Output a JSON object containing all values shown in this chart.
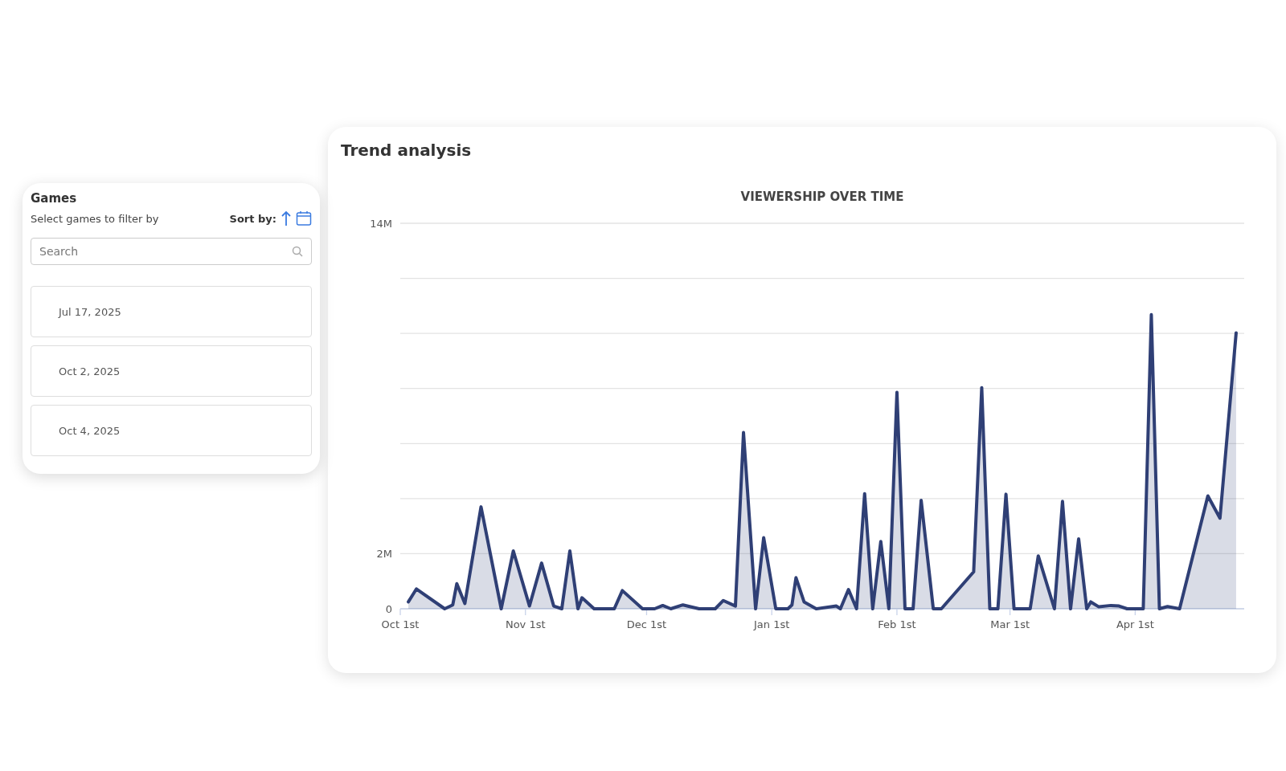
{
  "chart_data": [
    {
      "type": "area",
      "title": "Trend analysis",
      "subtitle": "VIEWERSHIP OVER TIME",
      "x": [
        "2025-10-03",
        "2025-10-05",
        "2025-10-12",
        "2025-10-14",
        "2025-10-15",
        "2025-10-17",
        "2025-10-21",
        "2025-10-26",
        "2025-10-29",
        "2025-11-02",
        "2025-11-05",
        "2025-11-08",
        "2025-11-10",
        "2025-11-12",
        "2025-11-14",
        "2025-11-15",
        "2025-11-18",
        "2025-11-23",
        "2025-11-25",
        "2025-11-30",
        "2025-12-03",
        "2025-12-05",
        "2025-12-07",
        "2025-12-10",
        "2025-12-14",
        "2025-12-18",
        "2025-12-20",
        "2025-12-23",
        "2025-12-25",
        "2025-12-28",
        "2025-12-30",
        "2026-01-02",
        "2026-01-05",
        "2026-01-06",
        "2026-01-07",
        "2026-01-09",
        "2026-01-12",
        "2026-01-17",
        "2026-01-18",
        "2026-01-20",
        "2026-01-22",
        "2026-01-24",
        "2026-01-26",
        "2026-01-28",
        "2026-01-30",
        "2026-02-01",
        "2026-02-03",
        "2026-02-05",
        "2026-02-07",
        "2026-02-10",
        "2026-02-12",
        "2026-02-20",
        "2026-02-22",
        "2026-02-24",
        "2026-02-26",
        "2026-02-28",
        "2026-03-02",
        "2026-03-06",
        "2026-03-08",
        "2026-03-12",
        "2026-03-14",
        "2026-03-16",
        "2026-03-18",
        "2026-03-20",
        "2026-03-21",
        "2026-03-23",
        "2026-03-26",
        "2026-03-28",
        "2026-03-30",
        "2026-04-03",
        "2026-04-05",
        "2026-04-07",
        "2026-04-09",
        "2026-04-12",
        "2026-04-19",
        "2026-04-22",
        "2026-04-26"
      ],
      "series": [
        {
          "color": "#2f3f75",
          "values": [
            250000,
            720000,
            0,
            140000,
            910000,
            190000,
            3700000,
            0,
            2100000,
            100000,
            1660000,
            100000,
            0,
            2100000,
            0,
            400000,
            0,
            0,
            660000,
            0,
            0,
            120000,
            0,
            140000,
            0,
            0,
            300000,
            100000,
            6400000,
            0,
            2580000,
            0,
            0,
            140000,
            1130000,
            250000,
            0,
            100000,
            0,
            700000,
            0,
            4180000,
            0,
            2440000,
            0,
            7860000,
            0,
            0,
            3940000,
            0,
            0,
            1340000,
            8030000,
            0,
            0,
            4160000,
            0,
            0,
            1920000,
            0,
            3900000,
            0,
            2540000,
            0,
            250000,
            70000,
            120000,
            100000,
            0,
            0,
            10680000,
            0,
            80000,
            0,
            4100000,
            3290000,
            10020000
          ]
        }
      ],
      "xlim": [
        "2025-10-01",
        "2026-04-28"
      ],
      "xticks": [
        {
          "value": "2025-10-01",
          "label": "Oct 1st"
        },
        {
          "value": "2025-11-01",
          "label": "Nov 1st"
        },
        {
          "value": "2025-12-01",
          "label": "Dec 1st"
        },
        {
          "value": "2026-01-01",
          "label": "Jan 1st"
        },
        {
          "value": "2026-02-01",
          "label": "Feb 1st"
        },
        {
          "value": "2026-03-01",
          "label": "Mar 1st"
        },
        {
          "value": "2026-04-01",
          "label": "Apr 1st"
        }
      ],
      "ylim": [
        0,
        14000000
      ],
      "yticks": [
        {
          "value": 0,
          "label": "0"
        },
        {
          "value": 2000000,
          "label": "2M"
        },
        {
          "value": 4000000,
          "label": null
        },
        {
          "value": 6000000,
          "label": null
        },
        {
          "value": 8000000,
          "label": null
        },
        {
          "value": 10000000,
          "label": null
        },
        {
          "value": 12000000,
          "label": null
        },
        {
          "value": 14000000,
          "label": "14M"
        }
      ],
      "grid": "y",
      "marker": "none",
      "line_style": "solid"
    },
    {
      "type": "other",
      "title": "Games",
      "subtitle": "Select games to filter by",
      "annotations": [
        "Sort by:",
        "Search",
        "Jul 17, 2025",
        "Oct 2, 2025",
        "Oct 4, 2025"
      ]
    }
  ]
}
